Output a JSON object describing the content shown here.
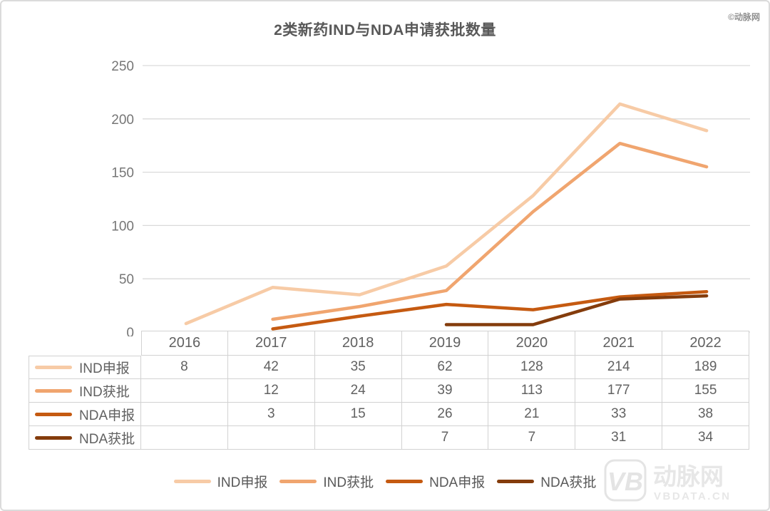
{
  "title": "2类新药IND与NDA申请获批数量",
  "watermark_top": "©动脉网",
  "watermark_bottom": {
    "logo": "VB",
    "name": "动脉网",
    "site": "VBDATA.CN"
  },
  "chart_data": {
    "type": "line",
    "title": "2类新药IND与NDA申请获批数量",
    "categories": [
      "2016",
      "2017",
      "2018",
      "2019",
      "2020",
      "2021",
      "2022"
    ],
    "series": [
      {
        "name": "IND申报",
        "color": "#F7CBA6",
        "values": [
          8,
          42,
          35,
          62,
          128,
          214,
          189
        ]
      },
      {
        "name": "IND获批",
        "color": "#F0A56F",
        "values": [
          null,
          12,
          24,
          39,
          113,
          177,
          155
        ]
      },
      {
        "name": "NDA申报",
        "color": "#C55A11",
        "values": [
          null,
          3,
          15,
          26,
          21,
          33,
          38
        ]
      },
      {
        "name": "NDA获批",
        "color": "#843C0C",
        "values": [
          null,
          null,
          null,
          7,
          7,
          31,
          34
        ]
      }
    ],
    "ylim": [
      0,
      250
    ],
    "yticks": [
      0,
      50,
      100,
      150,
      200,
      250
    ],
    "grid": "horizontal",
    "legend_position": "bottom",
    "data_table_shown": true
  },
  "colors": {
    "gridline": "#D9D9D9",
    "table_border": "#D2D2D2",
    "axis_text": "#767676",
    "table_text": "#616161",
    "title_text": "#595959",
    "watermark": "#E4E4E4"
  }
}
